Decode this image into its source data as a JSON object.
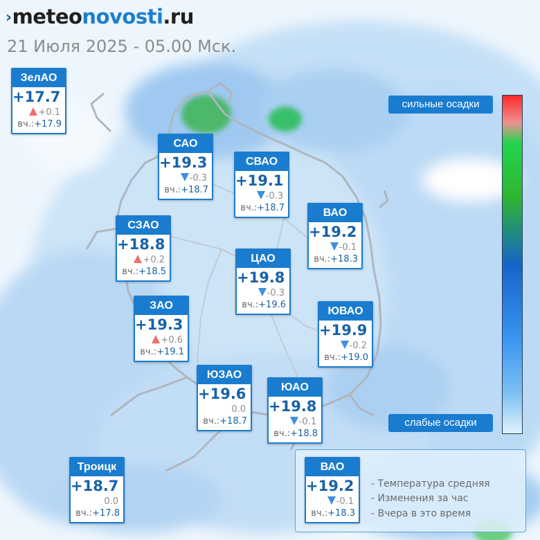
{
  "brand": {
    "mark": "›",
    "part1": "meteo",
    "part2": "novosti",
    "part3": ".ru"
  },
  "subtitle": "21 Июля 2025 - 05.00 Мск.",
  "yesterday_label": "вч.:",
  "districts": [
    {
      "id": "zelao",
      "name": "ЗелАО",
      "temp": "+17.7",
      "trend": "up",
      "change": "+0.1",
      "yesterday": "+17.9"
    },
    {
      "id": "sao",
      "name": "САО",
      "temp": "+19.3",
      "trend": "down",
      "change": "-0.3",
      "yesterday": "+18.7"
    },
    {
      "id": "svao",
      "name": "СВАО",
      "temp": "+19.1",
      "trend": "down",
      "change": "-0.3",
      "yesterday": "+18.7"
    },
    {
      "id": "vao",
      "name": "ВАО",
      "temp": "+19.2",
      "trend": "down",
      "change": "-0.1",
      "yesterday": "+18.3"
    },
    {
      "id": "szao",
      "name": "СЗАО",
      "temp": "+18.8",
      "trend": "up",
      "change": "+0.2",
      "yesterday": "+18.5"
    },
    {
      "id": "cao",
      "name": "ЦАО",
      "temp": "+19.8",
      "trend": "down",
      "change": "-0.3",
      "yesterday": "+19.6"
    },
    {
      "id": "zao",
      "name": "ЗАО",
      "temp": "+19.3",
      "trend": "up",
      "change": "+0.6",
      "yesterday": "+19.1"
    },
    {
      "id": "yuvao",
      "name": "ЮВАО",
      "temp": "+19.9",
      "trend": "down",
      "change": "-0.2",
      "yesterday": "+19.0"
    },
    {
      "id": "yuzao",
      "name": "ЮЗАО",
      "temp": "+19.6",
      "trend": "none",
      "change": "0.0",
      "yesterday": "+18.7"
    },
    {
      "id": "yuao",
      "name": "ЮАО",
      "temp": "+19.8",
      "trend": "down",
      "change": "-0.1",
      "yesterday": "+18.8"
    },
    {
      "id": "troitsk",
      "name": "Троицк",
      "temp": "+18.7",
      "trend": "none",
      "change": "0.0",
      "yesterday": "+17.8"
    }
  ],
  "precip_scale": {
    "top_label": "сильные осадки",
    "bottom_label": "слабые осадки"
  },
  "legend": {
    "sample": {
      "name": "ВАО",
      "temp": "+19.2",
      "trend": "down",
      "change": "-0.1",
      "yesterday": "+18.3"
    },
    "items": [
      "- Температура средняя",
      "- Изменения за час",
      "- Вчера в это время"
    ]
  },
  "colors": {
    "accent": "#1a7ccf",
    "temp": "#1762a8",
    "up": "#ee6f6f",
    "down": "#3f8ee0"
  }
}
